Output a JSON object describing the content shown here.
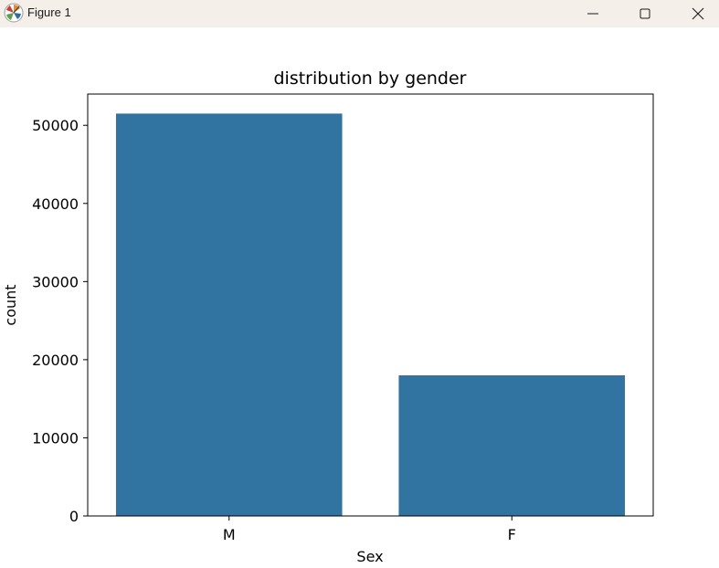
{
  "window": {
    "title": "Figure 1",
    "icons": {
      "app": "matplotlib-icon",
      "minimize": "minimize-icon",
      "maximize": "maximize-icon",
      "close": "close-icon"
    }
  },
  "chart_data": {
    "type": "bar",
    "title": "distribution by gender",
    "xlabel": "Sex",
    "ylabel": "count",
    "categories": [
      "M",
      "F"
    ],
    "values": [
      51500,
      18000
    ],
    "ylim": [
      0,
      54000
    ],
    "yticks": [
      0,
      10000,
      20000,
      30000,
      40000,
      50000
    ],
    "bar_color": "#3274a1",
    "grid": false
  }
}
